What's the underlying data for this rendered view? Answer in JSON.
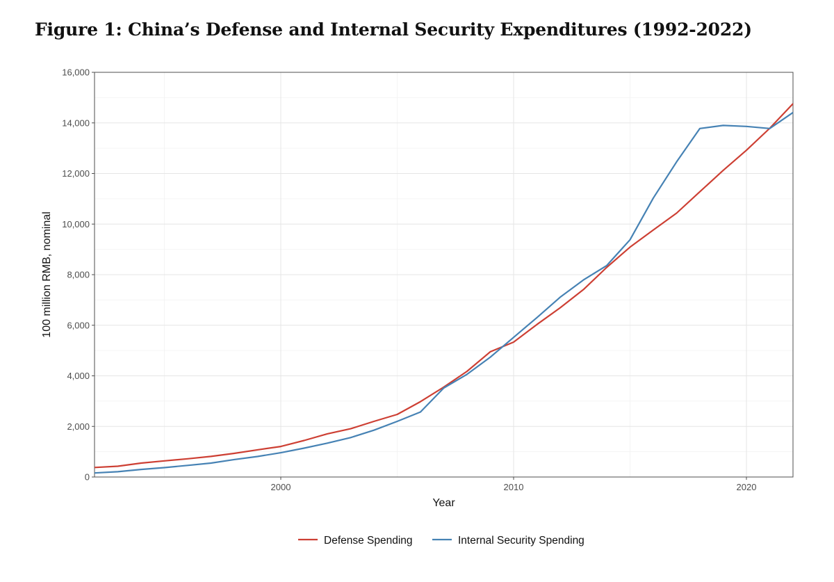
{
  "title": "Figure 1: China’s Defense and Internal Security Expenditures (1992-2022)",
  "chart_data": {
    "type": "line",
    "xlabel": "Year",
    "ylabel": "100 million RMB, nominal",
    "xlim": [
      1992,
      2022
    ],
    "ylim": [
      0,
      16000
    ],
    "x_ticks": [
      2000,
      2010,
      2020
    ],
    "y_ticks": [
      0,
      2000,
      4000,
      6000,
      8000,
      10000,
      12000,
      14000,
      16000
    ],
    "y_tick_labels": [
      "0",
      "2,000",
      "4,000",
      "6,000",
      "8,000",
      "10,000",
      "12,000",
      "14,000",
      "16,000"
    ],
    "grid": true,
    "legend_position": "bottom",
    "x": [
      1992,
      1993,
      1994,
      1995,
      1996,
      1997,
      1998,
      1999,
      2000,
      2001,
      2002,
      2003,
      2004,
      2005,
      2006,
      2007,
      2008,
      2009,
      2010,
      2011,
      2012,
      2013,
      2014,
      2015,
      2016,
      2017,
      2018,
      2019,
      2020,
      2021,
      2022
    ],
    "series": [
      {
        "name": "Defense Spending",
        "color": "#cd3f33",
        "values": [
          378,
          426,
          551,
          637,
          720,
          813,
          934,
          1076,
          1208,
          1442,
          1708,
          1908,
          2200,
          2475,
          2979,
          3555,
          4179,
          4951,
          5333,
          6028,
          6692,
          7411,
          8290,
          9088,
          9766,
          10432,
          11280,
          12122,
          12918,
          13787,
          14760
        ]
      },
      {
        "name": "Internal Security Spending",
        "color": "#4682b4",
        "values": [
          160,
          210,
          300,
          370,
          460,
          550,
          690,
          810,
          960,
          1140,
          1340,
          1560,
          1850,
          2200,
          2570,
          3520,
          4060,
          4740,
          5520,
          6300,
          7110,
          7790,
          8360,
          9380,
          11030,
          12460,
          13780,
          13900,
          13860,
          13780,
          14410
        ]
      }
    ]
  }
}
